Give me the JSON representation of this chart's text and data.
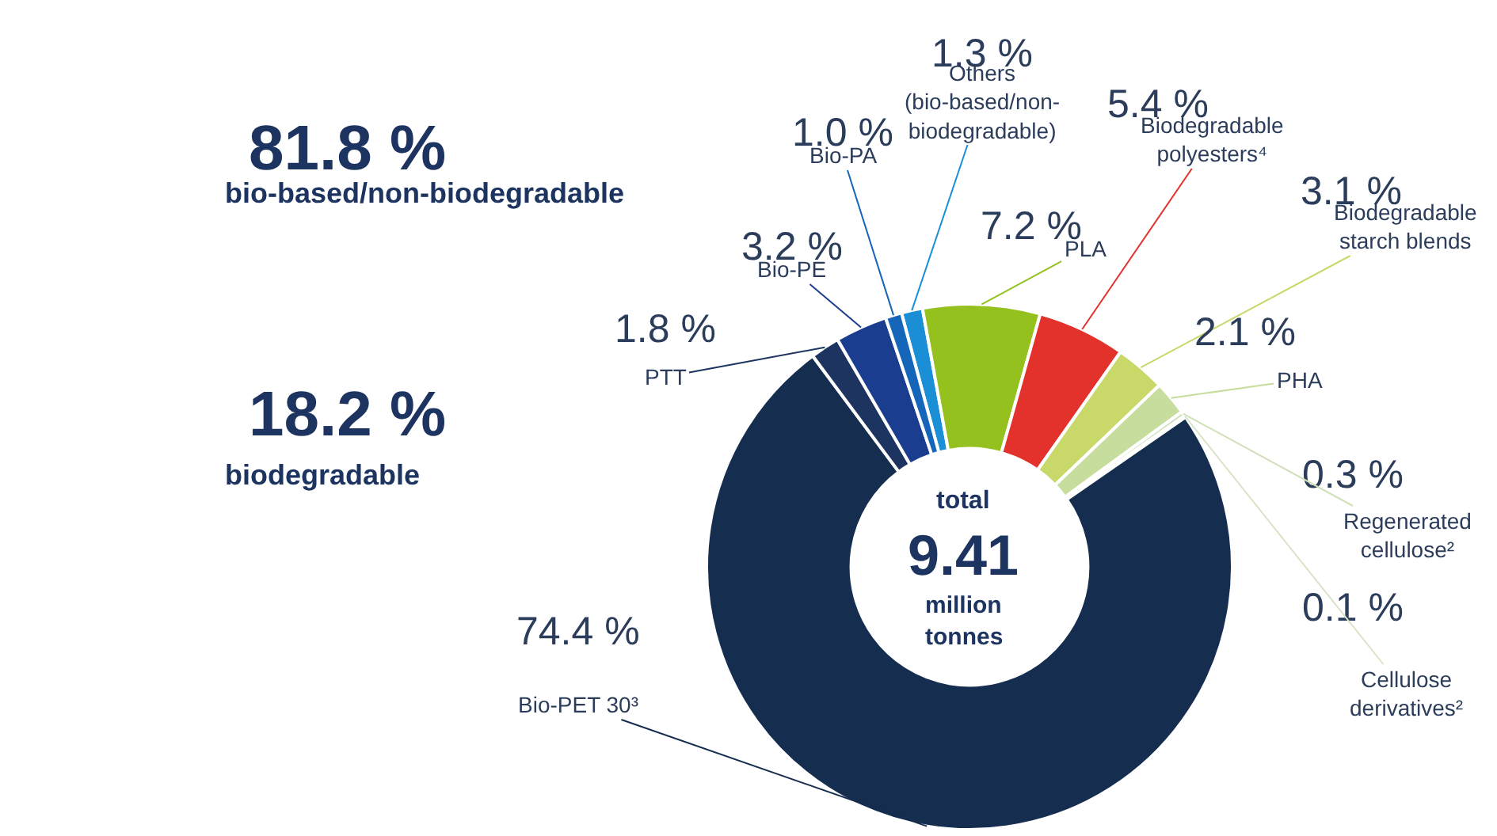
{
  "chart_data": {
    "type": "donut",
    "categories": [
      "Others\n(bio-based/non-\nbiodegradable)",
      "PLA",
      "Biodegradable\npolyesters⁴",
      "Biodegradable\nstarch blends",
      "PHA",
      "Regenerated\ncellulose²",
      "Cellulose\nderivatives²",
      "Bio-PET 30³",
      "PTT",
      "Bio-PE",
      "Bio-PA"
    ],
    "values": [
      1.3,
      7.2,
      5.4,
      3.1,
      2.1,
      0.3,
      0.1,
      74.4,
      1.8,
      3.2,
      1.0
    ],
    "colors": [
      "#1b8fd6",
      "#95c11f",
      "#e3312b",
      "#c8d96a",
      "#c6dd9e",
      "#d0e0b8",
      "#d9e4c6",
      "#152d4f",
      "#1d3461",
      "#1a3d8f",
      "#1565b8"
    ],
    "value_labels": [
      "1.3 %",
      "7.2 %",
      "5.4 %",
      "3.1 %",
      "2.1 %",
      "0.3 %",
      "0.1 %",
      "74.4 %",
      "1.8 %",
      "3.2 %",
      "1.0 %"
    ],
    "annotations": [
      "81.8 %",
      "bio-based/non-biodegradable",
      "18.2 %",
      "biodegradable",
      "total\n9.41\nmillion\ntonnes"
    ],
    "legend": false
  }
}
